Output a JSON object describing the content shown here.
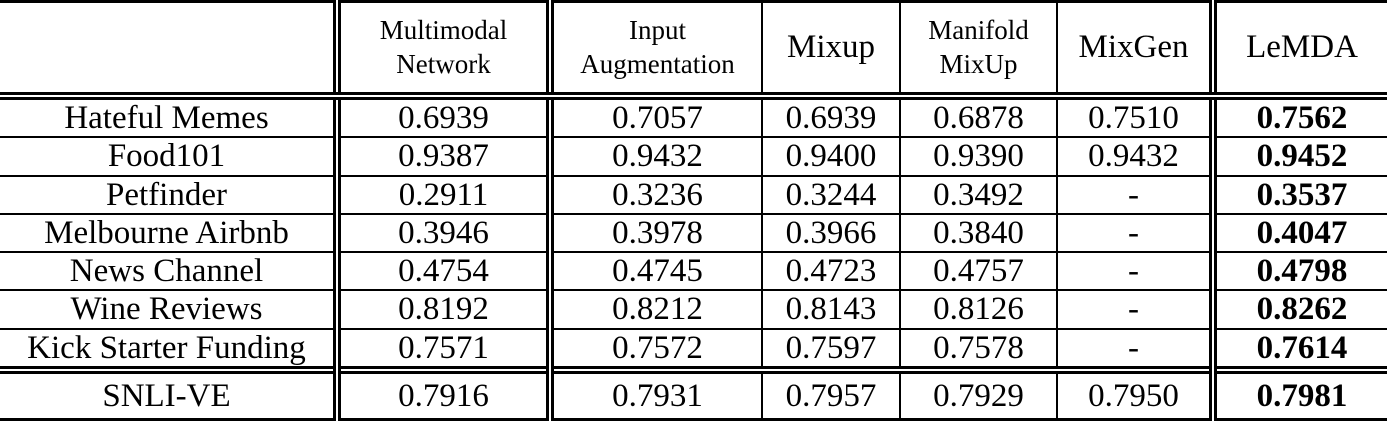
{
  "table": {
    "headers": [
      {
        "label": ""
      },
      {
        "label": "Multimodal\nNetwork"
      },
      {
        "label": "Input\nAugmentation"
      },
      {
        "label": "Mixup"
      },
      {
        "label": "Manifold\nMixUp"
      },
      {
        "label": "MixGen"
      },
      {
        "label": "LeMDA"
      }
    ],
    "rows": [
      {
        "label": "Hateful Memes",
        "values": [
          "0.6939",
          "0.7057",
          "0.6939",
          "0.6878",
          "0.7510",
          "0.7562"
        ]
      },
      {
        "label": "Food101",
        "values": [
          "0.9387",
          "0.9432",
          "0.9400",
          "0.9390",
          "0.9432",
          "0.9452"
        ]
      },
      {
        "label": "Petfinder",
        "values": [
          "0.2911",
          "0.3236",
          "0.3244",
          "0.3492",
          "-",
          "0.3537"
        ]
      },
      {
        "label": "Melbourne Airbnb",
        "values": [
          "0.3946",
          "0.3978",
          "0.3966",
          "0.3840",
          "-",
          "0.4047"
        ]
      },
      {
        "label": "News Channel",
        "values": [
          "0.4754",
          "0.4745",
          "0.4723",
          "0.4757",
          "-",
          "0.4798"
        ]
      },
      {
        "label": "Wine Reviews",
        "values": [
          "0.8192",
          "0.8212",
          "0.8143",
          "0.8126",
          "-",
          "0.8262"
        ]
      },
      {
        "label": "Kick Starter Funding",
        "values": [
          "0.7571",
          "0.7572",
          "0.7597",
          "0.7578",
          "-",
          "0.7614"
        ]
      },
      {
        "label": "SNLI-VE",
        "values": [
          "0.7916",
          "0.7931",
          "0.7957",
          "0.7929",
          "0.7950",
          "0.7981"
        ]
      }
    ]
  },
  "chart_data": {
    "type": "table",
    "columns": [
      "",
      "Multimodal Network",
      "Input Augmentation",
      "Mixup",
      "Manifold MixUp",
      "MixGen",
      "LeMDA"
    ],
    "rows": [
      [
        "Hateful Memes",
        "0.6939",
        "0.7057",
        "0.6939",
        "0.6878",
        "0.7510",
        "0.7562"
      ],
      [
        "Food101",
        "0.9387",
        "0.9432",
        "0.9400",
        "0.9390",
        "0.9432",
        "0.9452"
      ],
      [
        "Petfinder",
        "0.2911",
        "0.3236",
        "0.3244",
        "0.3492",
        "-",
        "0.3537"
      ],
      [
        "Melbourne Airbnb",
        "0.3946",
        "0.3978",
        "0.3966",
        "0.3840",
        "-",
        "0.4047"
      ],
      [
        "News Channel",
        "0.4754",
        "0.4745",
        "0.4723",
        "0.4757",
        "-",
        "0.4798"
      ],
      [
        "Wine Reviews",
        "0.8192",
        "0.8212",
        "0.8143",
        "0.8126",
        "-",
        "0.8262"
      ],
      [
        "Kick Starter Funding",
        "0.7571",
        "0.7572",
        "0.7597",
        "0.7578",
        "-",
        "0.7614"
      ],
      [
        "SNLI-VE",
        "0.7916",
        "0.7931",
        "0.7957",
        "0.7929",
        "0.7950",
        "0.7981"
      ]
    ],
    "emphasis": "LeMDA column values rendered bold (best results)"
  }
}
